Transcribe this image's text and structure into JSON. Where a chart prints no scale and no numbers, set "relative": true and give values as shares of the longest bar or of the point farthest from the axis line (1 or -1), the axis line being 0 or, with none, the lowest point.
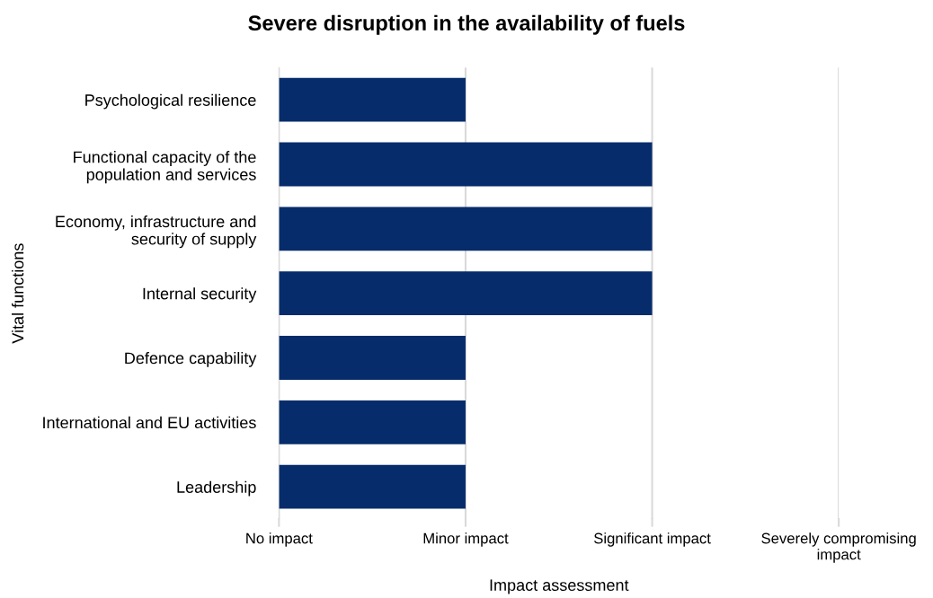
{
  "chart_data": {
    "type": "bar",
    "orientation": "horizontal",
    "relative": true,
    "title": "Severe disruption in the availability of fuels",
    "xlabel": "Impact assessment",
    "ylabel": "Vital functions",
    "categories": [
      "Psychological resilience",
      "Functional capacity of the\npopulation and services",
      "Economy, infrastructure and\nsecurity of supply",
      "Internal security",
      "Defence capability",
      "International and EU activities",
      "Leadership"
    ],
    "values": [
      0.5,
      1,
      1,
      1,
      0.5,
      0.5,
      0.5
    ],
    "color": "#062c6b",
    "ref_lines": [
      {
        "axis": "x",
        "value": 0,
        "label": "No impact",
        "color": "#d9d9d9"
      },
      {
        "axis": "x",
        "value": 0.5,
        "label": "Minor impact",
        "color": "#d9d9d9"
      },
      {
        "axis": "x",
        "value": 1,
        "label": "Significant impact",
        "color": "#d9d9d9"
      },
      {
        "axis": "x",
        "value": 1.5,
        "label": "Severely compromising\nimpact",
        "color": "#d9d9d9"
      }
    ],
    "legend": false
  }
}
